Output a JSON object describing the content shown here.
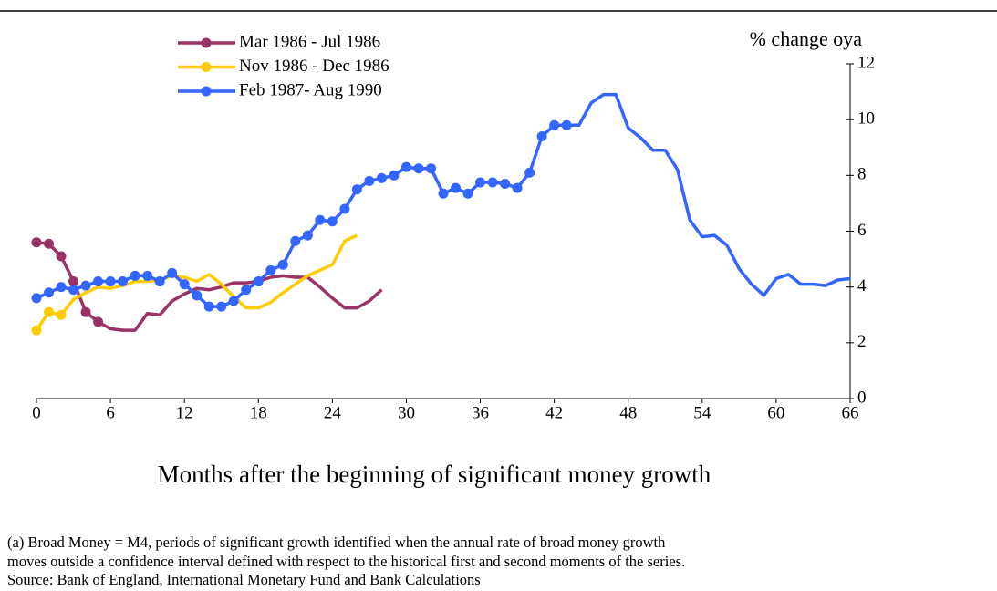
{
  "chart_data": {
    "type": "line",
    "y_axis_label": "% change oya",
    "x_axis_label": "Months after the beginning of significant money growth",
    "xlim": [
      0,
      66
    ],
    "xticks": [
      0,
      6,
      12,
      18,
      24,
      30,
      36,
      42,
      48,
      54,
      60,
      66
    ],
    "ylim": [
      0,
      12
    ],
    "yticks": [
      0,
      2,
      4,
      6,
      8,
      10,
      12
    ],
    "grid": false,
    "legend": "top-left",
    "series": [
      {
        "name": "Mar 1986 - Jul 1986",
        "color": "#993366",
        "marker_last": 5,
        "x": [
          0,
          1,
          2,
          3,
          4,
          5,
          6,
          7,
          8,
          9,
          10,
          11,
          12,
          13,
          14,
          15,
          16,
          17,
          18,
          19,
          20,
          21,
          22,
          23,
          24,
          25,
          26,
          27,
          28
        ],
        "values": [
          5.6,
          5.55,
          5.1,
          4.2,
          3.1,
          2.75,
          2.5,
          2.45,
          2.45,
          3.05,
          3.0,
          3.5,
          3.75,
          3.95,
          3.9,
          4.0,
          4.15,
          4.15,
          4.2,
          4.35,
          4.4,
          4.35,
          4.35,
          4.0,
          3.6,
          3.25,
          3.25,
          3.5,
          3.9
        ]
      },
      {
        "name": "Nov 1986 - Dec 1986",
        "color": "#ffcc00",
        "marker_last": 2,
        "x": [
          0,
          1,
          2,
          3,
          4,
          5,
          6,
          7,
          8,
          9,
          10,
          11,
          12,
          13,
          14,
          15,
          16,
          17,
          18,
          19,
          20,
          21,
          22,
          23,
          24,
          25,
          26
        ],
        "values": [
          2.45,
          3.1,
          3.0,
          3.55,
          3.8,
          4.0,
          3.95,
          4.05,
          4.2,
          4.2,
          4.25,
          4.4,
          4.35,
          4.2,
          4.45,
          4.1,
          3.65,
          3.25,
          3.25,
          3.45,
          3.8,
          4.1,
          4.4,
          4.6,
          4.8,
          5.65,
          5.85
        ]
      },
      {
        "name": "Feb 1987- Aug 1990",
        "color": "#3366ff",
        "marker_last": 43,
        "x": [
          0,
          1,
          2,
          3,
          4,
          5,
          6,
          7,
          8,
          9,
          10,
          11,
          12,
          13,
          14,
          15,
          16,
          17,
          18,
          19,
          20,
          21,
          22,
          23,
          24,
          25,
          26,
          27,
          28,
          29,
          30,
          31,
          32,
          33,
          34,
          35,
          36,
          37,
          38,
          39,
          40,
          41,
          42,
          43,
          44,
          45,
          46,
          47,
          48,
          49,
          50,
          51,
          52,
          53,
          54,
          55,
          56,
          57,
          58,
          59,
          60,
          61,
          62,
          63,
          64,
          65,
          66
        ],
        "values": [
          3.6,
          3.8,
          4.0,
          3.9,
          4.05,
          4.2,
          4.2,
          4.2,
          4.4,
          4.4,
          4.2,
          4.5,
          4.1,
          3.7,
          3.3,
          3.3,
          3.5,
          3.9,
          4.2,
          4.6,
          4.8,
          5.65,
          5.85,
          6.4,
          6.35,
          6.8,
          7.5,
          7.8,
          7.9,
          8.0,
          8.3,
          8.25,
          8.25,
          7.35,
          7.55,
          7.35,
          7.75,
          7.75,
          7.7,
          7.55,
          8.1,
          9.4,
          9.8,
          9.8,
          9.8,
          10.6,
          10.9,
          10.9,
          9.7,
          9.35,
          8.9,
          8.9,
          8.2,
          6.4,
          5.8,
          5.85,
          5.5,
          4.65,
          4.1,
          3.7,
          4.3,
          4.45,
          4.1,
          4.1,
          4.05,
          4.25,
          4.3
        ]
      }
    ]
  },
  "footnotes": [
    "(a) Broad Money = M4, periods of significant growth identified when the annual rate of broad money growth",
    "moves outside a confidence interval defined with respect to the historical first and second moments of the series.",
    "Source:  Bank of England, International Monetary Fund and Bank Calculations"
  ]
}
